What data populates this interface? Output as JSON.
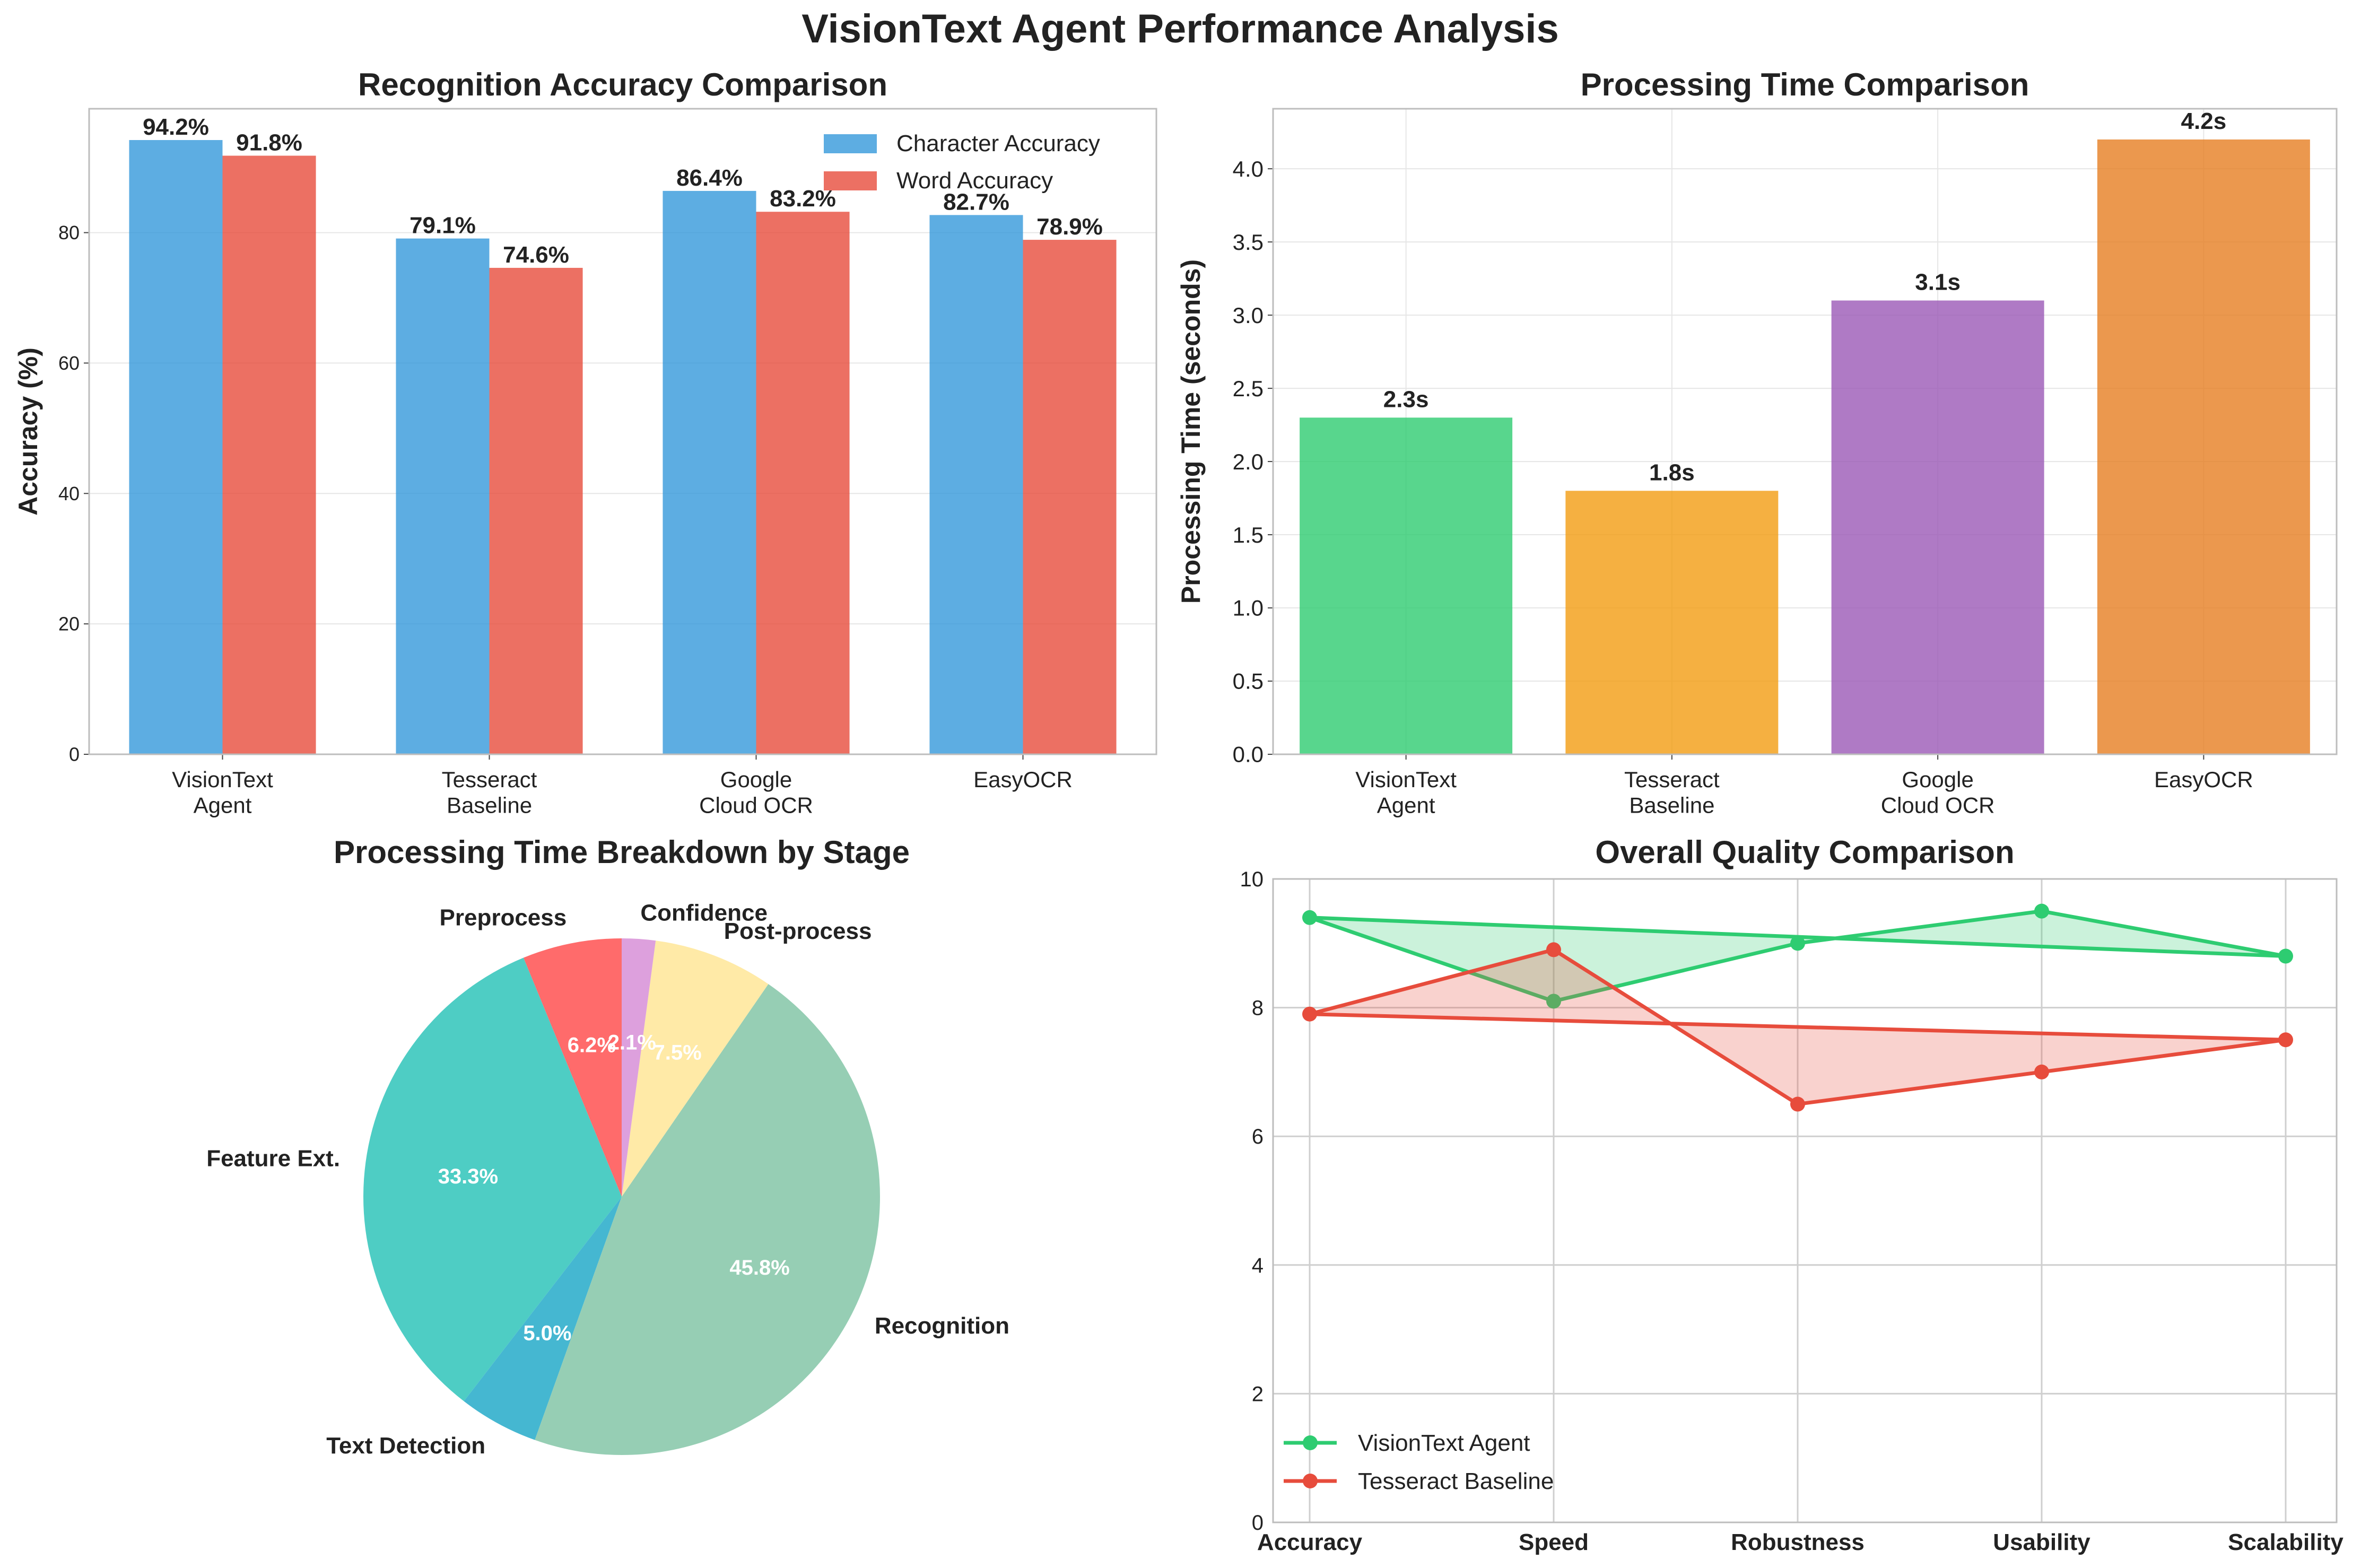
{
  "suptitle": "VisionText Agent Performance Analysis",
  "chart_data": [
    {
      "type": "bar",
      "title": "Recognition Accuracy Comparison",
      "ylabel": "Accuracy (%)",
      "xlabel": "",
      "categories": [
        "VisionText\nAgent",
        "Tesseract\nBaseline",
        "Google\nCloud OCR",
        "EasyOCR"
      ],
      "series": [
        {
          "name": "Character Accuracy",
          "values": [
            94.2,
            79.1,
            86.4,
            82.7
          ],
          "color": "#3498db"
        },
        {
          "name": "Word Accuracy",
          "values": [
            91.8,
            74.6,
            83.2,
            78.9
          ],
          "color": "#e74c3c"
        }
      ],
      "ylim": [
        0,
        99
      ],
      "yticks": [
        0,
        20,
        40,
        60,
        80
      ],
      "value_suffix": "%",
      "legend": "top-right",
      "grid": true
    },
    {
      "type": "bar",
      "title": "Processing Time Comparison",
      "ylabel": "Processing Time (seconds)",
      "xlabel": "",
      "categories": [
        "VisionText\nAgent",
        "Tesseract\nBaseline",
        "Google\nCloud OCR",
        "EasyOCR"
      ],
      "values": [
        2.3,
        1.8,
        3.1,
        4.2
      ],
      "colors": [
        "#2ecc71",
        "#f39c12",
        "#9b59b6",
        "#e67e22"
      ],
      "ylim": [
        0,
        4.41
      ],
      "yticks": [
        0.0,
        0.5,
        1.0,
        1.5,
        2.0,
        2.5,
        3.0,
        3.5,
        4.0
      ],
      "value_suffix": "s",
      "grid": true
    },
    {
      "type": "pie",
      "title": "Processing Time Breakdown by Stage",
      "labels": [
        "Preprocess",
        "Feature Ext.",
        "Text Detection",
        "Recognition",
        "Post-process",
        "Confidence"
      ],
      "values": [
        6.2,
        33.3,
        5.0,
        45.8,
        7.5,
        2.1
      ],
      "pct_labels": [
        "6.2%",
        "33.3%",
        "5.0%",
        "45.8%",
        "7.5%",
        "2.1%"
      ],
      "colors": [
        "#ff6b6b",
        "#4ecdc4",
        "#45b7d1",
        "#96ceb4",
        "#ffeaa7",
        "#dda0dd"
      ],
      "start_angle_deg": 90,
      "direction": "counterclockwise"
    },
    {
      "type": "line",
      "title": "Overall Quality Comparison",
      "categories": [
        "Accuracy",
        "Speed",
        "Robustness",
        "Usability",
        "Scalability"
      ],
      "series": [
        {
          "name": "VisionText Agent",
          "values": [
            9.4,
            8.1,
            9.0,
            9.5,
            8.8
          ],
          "color": "#2ecc71"
        },
        {
          "name": "Tesseract Baseline",
          "values": [
            7.9,
            8.9,
            6.5,
            7.0,
            7.5
          ],
          "color": "#e74c3c"
        }
      ],
      "ylim": [
        0,
        10
      ],
      "yticks": [
        0,
        2,
        4,
        6,
        8,
        10
      ],
      "legend": "bottom-left",
      "grid": true,
      "filled_closed_polygon": true
    }
  ]
}
